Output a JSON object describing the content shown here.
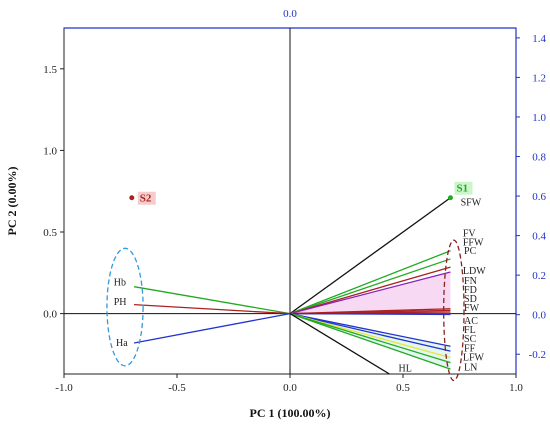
{
  "chart_data": {
    "type": "scatter",
    "xlabel": "PC 1 (100.00%)",
    "ylabel": "PC 2 (0.00%)",
    "top_axis_label": "0.0",
    "xlim": [
      -1.0,
      1.0
    ],
    "ylim": [
      -0.37,
      1.75
    ],
    "right_ylim": [
      -0.3,
      1.45
    ],
    "x_ticks": [
      -1.0,
      -0.5,
      0.0,
      0.5,
      1.0
    ],
    "x_tick_labels": [
      "-1.0",
      "-0.5",
      "0.0",
      "0.5",
      "1.0"
    ],
    "y_ticks": [
      0.0,
      0.5,
      1.0,
      1.5
    ],
    "y_tick_labels": [
      "0.0",
      "0.5",
      "1.0",
      "1.5"
    ],
    "right_ticks": [
      -0.2,
      0.0,
      0.2,
      0.4,
      0.6,
      0.8,
      1.0,
      1.2,
      1.4
    ],
    "right_tick_labels": [
      "-0.2",
      "0.0",
      "0.2",
      "0.4",
      "0.6",
      "0.8",
      "1.0",
      "1.2",
      "1.4"
    ],
    "samples": [
      {
        "label": "S1",
        "x": 0.71,
        "y": 0.71,
        "color": "#22aa22",
        "label_bg": "#ccf5cc"
      },
      {
        "label": "S2",
        "x": -0.7,
        "y": 0.71,
        "color": "#aa2222",
        "label_bg": "#f5cccc"
      }
    ],
    "loadings": [
      {
        "label": "SFW",
        "x": 0.71,
        "y": 0.71,
        "color": "#111111"
      },
      {
        "label": "FV",
        "x": 0.71,
        "y": 0.385,
        "color": "#22aa22"
      },
      {
        "label": "FFW",
        "x": 0.71,
        "y": 0.335,
        "color": "#22aa22"
      },
      {
        "label": "PC",
        "x": 0.71,
        "y": 0.285,
        "color": "#aa2222"
      },
      {
        "label": "LDW",
        "x": 0.71,
        "y": 0.255,
        "color": "#8822bb"
      },
      {
        "label": "FN",
        "x": 0.71,
        "y": 0.03,
        "color": "#aa2222"
      },
      {
        "label": "FD",
        "x": 0.71,
        "y": 0.02,
        "color": "#aa2222"
      },
      {
        "label": "SD",
        "x": 0.71,
        "y": 0.01,
        "color": "#aa2222"
      },
      {
        "label": "FW",
        "x": 0.71,
        "y": 0.0,
        "color": "#aa2222"
      },
      {
        "label": "AC",
        "x": 0.71,
        "y": -0.005,
        "color": "#2233cc"
      },
      {
        "label": "FL",
        "x": 0.71,
        "y": -0.2,
        "color": "#2233cc"
      },
      {
        "label": "SC",
        "x": 0.71,
        "y": -0.23,
        "color": "#2233cc"
      },
      {
        "label": "FF",
        "x": 0.71,
        "y": -0.27,
        "color": "#e6e63a"
      },
      {
        "label": "LFW",
        "x": 0.71,
        "y": -0.3,
        "color": "#22aa22"
      },
      {
        "label": "LN",
        "x": 0.71,
        "y": -0.34,
        "color": "#22aa22"
      },
      {
        "label": "HL",
        "x": 0.44,
        "y": -0.37,
        "color": "#111111"
      },
      {
        "label": "Hb",
        "x": -0.69,
        "y": 0.165,
        "color": "#22aa22"
      },
      {
        "label": "PH",
        "x": -0.69,
        "y": 0.055,
        "color": "#aa2222"
      },
      {
        "label": "Ha",
        "x": -0.69,
        "y": -0.18,
        "color": "#2233cc"
      }
    ],
    "label_positions": {
      "SFW": [
        0.755,
        0.68
      ],
      "FV": [
        0.765,
        0.49
      ],
      "FFW": [
        0.765,
        0.435
      ],
      "PC": [
        0.77,
        0.385
      ],
      "LDW": [
        0.765,
        0.26
      ],
      "FN": [
        0.77,
        0.2
      ],
      "FD": [
        0.77,
        0.145
      ],
      "SD": [
        0.77,
        0.09
      ],
      "FW": [
        0.77,
        0.035
      ],
      "AC": [
        0.77,
        -0.045
      ],
      "FL": [
        0.77,
        -0.1
      ],
      "SC": [
        0.77,
        -0.155
      ],
      "FF": [
        0.77,
        -0.215
      ],
      "LFW": [
        0.765,
        -0.27
      ],
      "LN": [
        0.77,
        -0.33
      ],
      "HL": [
        0.48,
        -0.335
      ],
      "Hb": [
        -0.78,
        0.19
      ],
      "PH": [
        -0.78,
        0.07
      ],
      "Ha": [
        -0.77,
        -0.18
      ]
    },
    "ellipses": [
      {
        "cx": -0.73,
        "cy": 0.04,
        "rx": 0.08,
        "ry": 0.36,
        "color": "#3399dd"
      },
      {
        "cx": 0.725,
        "cy": 0.02,
        "rx": 0.045,
        "ry": 0.43,
        "color": "#882222"
      }
    ],
    "grid": false
  }
}
